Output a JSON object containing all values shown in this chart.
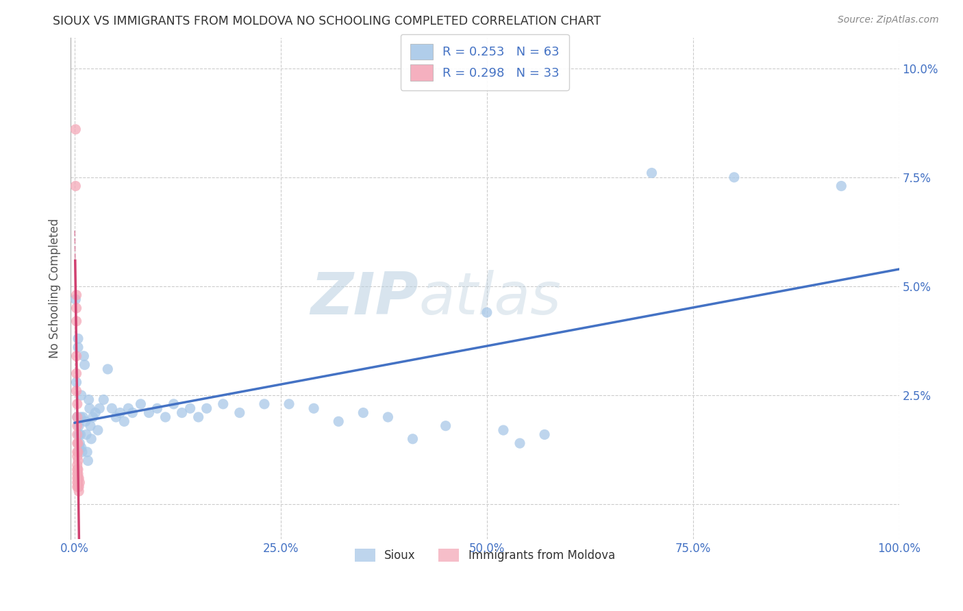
{
  "title": "SIOUX VS IMMIGRANTS FROM MOLDOVA NO SCHOOLING COMPLETED CORRELATION CHART",
  "source": "Source: ZipAtlas.com",
  "ylabel": "No Schooling Completed",
  "xlabel": "",
  "watermark_left": "ZIP",
  "watermark_right": "atlas",
  "legend_r1": "R = 0.253",
  "legend_n1": "N = 63",
  "legend_r2": "R = 0.298",
  "legend_n2": "N = 33",
  "sioux_color": "#a8c8e8",
  "moldova_color": "#f4a8b8",
  "sioux_line_color": "#4472c4",
  "moldova_line_color": "#d04070",
  "sioux_scatter": [
    [
      0.001,
      0.047
    ],
    [
      0.002,
      0.028
    ],
    [
      0.003,
      0.02
    ],
    [
      0.004,
      0.038
    ],
    [
      0.004,
      0.036
    ],
    [
      0.005,
      0.018
    ],
    [
      0.005,
      0.016
    ],
    [
      0.006,
      0.014
    ],
    [
      0.006,
      0.013
    ],
    [
      0.007,
      0.02
    ],
    [
      0.007,
      0.016
    ],
    [
      0.008,
      0.025
    ],
    [
      0.008,
      0.013
    ],
    [
      0.009,
      0.012
    ],
    [
      0.01,
      0.02
    ],
    [
      0.011,
      0.034
    ],
    [
      0.012,
      0.032
    ],
    [
      0.013,
      0.019
    ],
    [
      0.014,
      0.016
    ],
    [
      0.015,
      0.012
    ],
    [
      0.016,
      0.01
    ],
    [
      0.017,
      0.024
    ],
    [
      0.018,
      0.022
    ],
    [
      0.019,
      0.018
    ],
    [
      0.02,
      0.015
    ],
    [
      0.022,
      0.02
    ],
    [
      0.025,
      0.021
    ],
    [
      0.028,
      0.017
    ],
    [
      0.03,
      0.022
    ],
    [
      0.035,
      0.024
    ],
    [
      0.04,
      0.031
    ],
    [
      0.045,
      0.022
    ],
    [
      0.05,
      0.02
    ],
    [
      0.055,
      0.021
    ],
    [
      0.06,
      0.019
    ],
    [
      0.065,
      0.022
    ],
    [
      0.07,
      0.021
    ],
    [
      0.08,
      0.023
    ],
    [
      0.09,
      0.021
    ],
    [
      0.1,
      0.022
    ],
    [
      0.11,
      0.02
    ],
    [
      0.12,
      0.023
    ],
    [
      0.13,
      0.021
    ],
    [
      0.14,
      0.022
    ],
    [
      0.15,
      0.02
    ],
    [
      0.16,
      0.022
    ],
    [
      0.18,
      0.023
    ],
    [
      0.2,
      0.021
    ],
    [
      0.23,
      0.023
    ],
    [
      0.26,
      0.023
    ],
    [
      0.29,
      0.022
    ],
    [
      0.32,
      0.019
    ],
    [
      0.35,
      0.021
    ],
    [
      0.38,
      0.02
    ],
    [
      0.41,
      0.015
    ],
    [
      0.45,
      0.018
    ],
    [
      0.5,
      0.044
    ],
    [
      0.52,
      0.017
    ],
    [
      0.54,
      0.014
    ],
    [
      0.57,
      0.016
    ],
    [
      0.7,
      0.076
    ],
    [
      0.8,
      0.075
    ],
    [
      0.93,
      0.073
    ]
  ],
  "moldova_scatter": [
    [
      0.001,
      0.086
    ],
    [
      0.001,
      0.073
    ],
    [
      0.002,
      0.048
    ],
    [
      0.002,
      0.045
    ],
    [
      0.002,
      0.042
    ],
    [
      0.002,
      0.034
    ],
    [
      0.002,
      0.03
    ],
    [
      0.002,
      0.026
    ],
    [
      0.003,
      0.023
    ],
    [
      0.003,
      0.02
    ],
    [
      0.003,
      0.018
    ],
    [
      0.003,
      0.016
    ],
    [
      0.003,
      0.014
    ],
    [
      0.003,
      0.012
    ],
    [
      0.003,
      0.011
    ],
    [
      0.003,
      0.009
    ],
    [
      0.003,
      0.008
    ],
    [
      0.003,
      0.007
    ],
    [
      0.003,
      0.006
    ],
    [
      0.003,
      0.005
    ],
    [
      0.003,
      0.004
    ],
    [
      0.004,
      0.014
    ],
    [
      0.004,
      0.012
    ],
    [
      0.004,
      0.01
    ],
    [
      0.004,
      0.008
    ],
    [
      0.004,
      0.007
    ],
    [
      0.004,
      0.006
    ],
    [
      0.004,
      0.005
    ],
    [
      0.004,
      0.004
    ],
    [
      0.005,
      0.006
    ],
    [
      0.005,
      0.004
    ],
    [
      0.005,
      0.003
    ],
    [
      0.006,
      0.005
    ]
  ],
  "xlim": [
    -0.005,
    1.0
  ],
  "ylim": [
    -0.008,
    0.107
  ],
  "xticks": [
    0.0,
    0.25,
    0.5,
    0.75,
    1.0
  ],
  "xticklabels": [
    "0.0%",
    "25.0%",
    "50.0%",
    "75.0%",
    "100.0%"
  ],
  "yticks": [
    0.0,
    0.025,
    0.05,
    0.075,
    0.1
  ],
  "yticklabels": [
    "",
    "2.5%",
    "5.0%",
    "7.5%",
    "10.0%"
  ],
  "background_color": "#ffffff",
  "grid_color": "#cccccc",
  "title_color": "#333333",
  "axis_label_color": "#555555",
  "tick_color": "#4472c4"
}
